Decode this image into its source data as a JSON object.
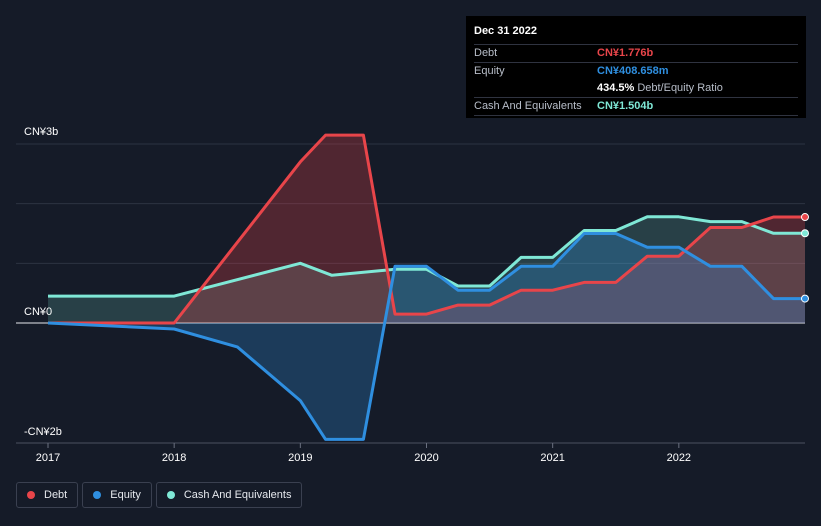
{
  "tooltip": {
    "date": "Dec 31 2022",
    "debt_label": "Debt",
    "debt_value": "CN¥1.776b",
    "equity_label": "Equity",
    "equity_value": "CN¥408.658m",
    "ratio_value": "434.5%",
    "ratio_label": "Debt/Equity Ratio",
    "cash_label": "Cash And Equivalents",
    "cash_value": "CN¥1.504b"
  },
  "legend": {
    "debt": "Debt",
    "equity": "Equity",
    "cash": "Cash And Equivalents"
  },
  "colors": {
    "debt": "#e8454a",
    "equity": "#2f8fe0",
    "cash": "#7fe8d6",
    "background": "#151b28"
  },
  "chart_data": {
    "type": "area",
    "title": "",
    "xlabel": "",
    "ylabel": "",
    "unit": "CN¥ billions",
    "ylim": [
      -2,
      3
    ],
    "xlim": [
      2017,
      2023.0
    ],
    "y_tick_labels": [
      "CN¥3b",
      "CN¥0",
      "-CN¥2b"
    ],
    "x_tick_labels": [
      "2017",
      "2018",
      "2019",
      "2020",
      "2021",
      "2022"
    ],
    "x_ticks": [
      2017,
      2018,
      2019,
      2020,
      2021,
      2022
    ],
    "series": [
      {
        "name": "Debt",
        "x": [
          2017.0,
          2018.0,
          2019.0,
          2019.2,
          2019.5,
          2019.75,
          2020.0,
          2020.25,
          2020.5,
          2020.75,
          2021.0,
          2021.25,
          2021.5,
          2021.75,
          2022.0,
          2022.25,
          2022.5,
          2022.75,
          2023.0
        ],
        "values": [
          0.0,
          0.0,
          2.7,
          3.15,
          3.15,
          0.15,
          0.15,
          0.3,
          0.3,
          0.55,
          0.55,
          0.68,
          0.68,
          1.12,
          1.12,
          1.6,
          1.6,
          1.776,
          1.776
        ]
      },
      {
        "name": "Equity",
        "x": [
          2017.0,
          2018.0,
          2018.5,
          2019.0,
          2019.2,
          2019.5,
          2019.75,
          2020.0,
          2020.25,
          2020.5,
          2020.75,
          2021.0,
          2021.25,
          2021.5,
          2021.75,
          2022.0,
          2022.25,
          2022.5,
          2022.75,
          2023.0
        ],
        "values": [
          0.0,
          -0.1,
          -0.4,
          -1.3,
          -1.95,
          -1.95,
          0.95,
          0.95,
          0.55,
          0.55,
          0.95,
          0.95,
          1.5,
          1.5,
          1.27,
          1.27,
          0.95,
          0.95,
          0.409,
          0.409
        ]
      },
      {
        "name": "Cash And Equivalents",
        "x": [
          2017.0,
          2018.0,
          2019.0,
          2019.25,
          2019.75,
          2020.0,
          2020.25,
          2020.5,
          2020.75,
          2021.0,
          2021.25,
          2021.5,
          2021.75,
          2022.0,
          2022.25,
          2022.5,
          2022.75,
          2023.0
        ],
        "values": [
          0.45,
          0.45,
          1.0,
          0.8,
          0.9,
          0.9,
          0.62,
          0.62,
          1.1,
          1.1,
          1.55,
          1.55,
          1.78,
          1.78,
          1.7,
          1.7,
          1.504,
          1.504
        ]
      }
    ]
  }
}
